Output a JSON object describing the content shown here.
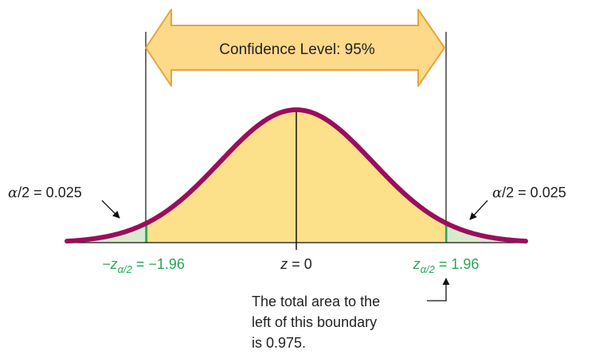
{
  "banner": {
    "text": "Confidence Level: 95%"
  },
  "annotations": {
    "left_alpha": {
      "symbol": "α",
      "rest": "/2 = 0.025"
    },
    "right_alpha": {
      "symbol": "α",
      "rest": "/2 = 0.025"
    },
    "left_z": {
      "prefix": "−z",
      "sub": "α/2",
      "value": " = −1.96"
    },
    "center_z": {
      "var": "z",
      "value": " = 0"
    },
    "right_z": {
      "prefix": "z",
      "sub": "α/2",
      "value": " = 1.96"
    },
    "note_lines": [
      "The total area to the",
      "left of this boundary",
      "is 0.975."
    ]
  },
  "colors": {
    "curve": "#9b0d5c",
    "middle_fill": "#fde08a",
    "tail_fill": "#d9e9cf",
    "arrow_fill": "#fdd98a",
    "arrow_stroke": "#e8a43a",
    "z_label": "#2aa55a"
  },
  "icons": {
    "banner_arrow": "double-headed-arrow-icon",
    "pointer_arrows": "arrow-icon"
  }
}
